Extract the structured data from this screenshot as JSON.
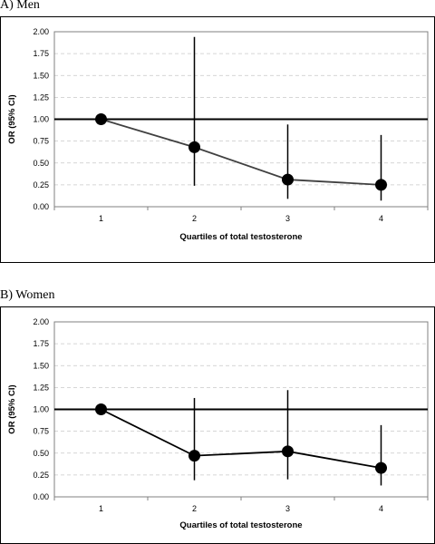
{
  "chart_data": [
    {
      "type": "line",
      "title": "A)  Men",
      "xlabel": "Quartiles of total testosterone",
      "ylabel": "OR (95% CI)",
      "categories": [
        "1",
        "2",
        "3",
        "4"
      ],
      "x": [
        1,
        2,
        3,
        4
      ],
      "ylim": [
        0,
        2
      ],
      "yticks": [
        "0.00",
        "0.25",
        "0.50",
        "0.75",
        "1.00",
        "1.25",
        "1.50",
        "1.75",
        "2.00"
      ],
      "reference_line": 1.0,
      "grid": "horizontal dashed",
      "series": [
        {
          "values": [
            1.0,
            0.68,
            0.31,
            0.25
          ],
          "ci_lower": [
            1.0,
            0.24,
            0.09,
            0.07
          ],
          "ci_upper": [
            1.0,
            1.94,
            0.94,
            0.82
          ]
        }
      ],
      "line_color": "#404040",
      "marker_color": "#000000"
    },
    {
      "type": "line",
      "title": "B)  Women",
      "xlabel": "Quartiles of total testosterone",
      "ylabel": "OR (95% CI)",
      "categories": [
        "1",
        "2",
        "3",
        "4"
      ],
      "x": [
        1,
        2,
        3,
        4
      ],
      "ylim": [
        0,
        2
      ],
      "yticks": [
        "0.00",
        "0.25",
        "0.50",
        "0.75",
        "1.00",
        "1.25",
        "1.50",
        "1.75",
        "2.00"
      ],
      "reference_line": 1.0,
      "grid": "horizontal dashed",
      "series": [
        {
          "values": [
            1.0,
            0.47,
            0.52,
            0.33
          ],
          "ci_lower": [
            1.0,
            0.19,
            0.2,
            0.13
          ],
          "ci_upper": [
            1.0,
            1.13,
            1.22,
            0.82
          ]
        }
      ],
      "line_color": "#000000",
      "marker_color": "#000000"
    }
  ]
}
